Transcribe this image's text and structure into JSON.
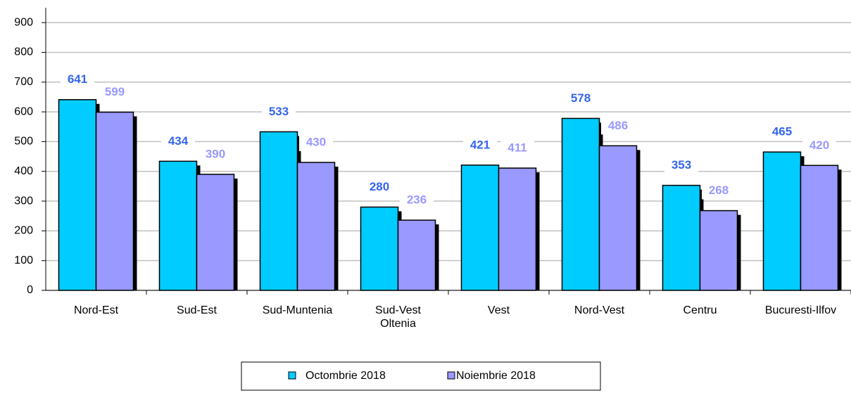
{
  "chart_data": {
    "type": "bar",
    "categories": [
      "Nord-Est",
      "Sud-Est",
      "Sud-Muntenia",
      "Sud-Vest\nOltenia",
      "Vest",
      "Nord-Vest",
      "Centru",
      "Bucuresti-Ilfov"
    ],
    "series": [
      {
        "name": "Octombrie 2018",
        "color": "#00ccff",
        "label_color": "#3366ee",
        "values": [
          641,
          434,
          533,
          280,
          421,
          578,
          353,
          465
        ]
      },
      {
        "name": "Noiembrie 2018",
        "color": "#9999ff",
        "label_color": "#9999ff",
        "values": [
          599,
          390,
          430,
          236,
          411,
          486,
          268,
          420
        ]
      }
    ],
    "ylim": [
      0,
      950
    ],
    "yticks": [
      0,
      100,
      200,
      300,
      400,
      500,
      600,
      700,
      800,
      900
    ],
    "grid": true,
    "legend": "bottom"
  }
}
